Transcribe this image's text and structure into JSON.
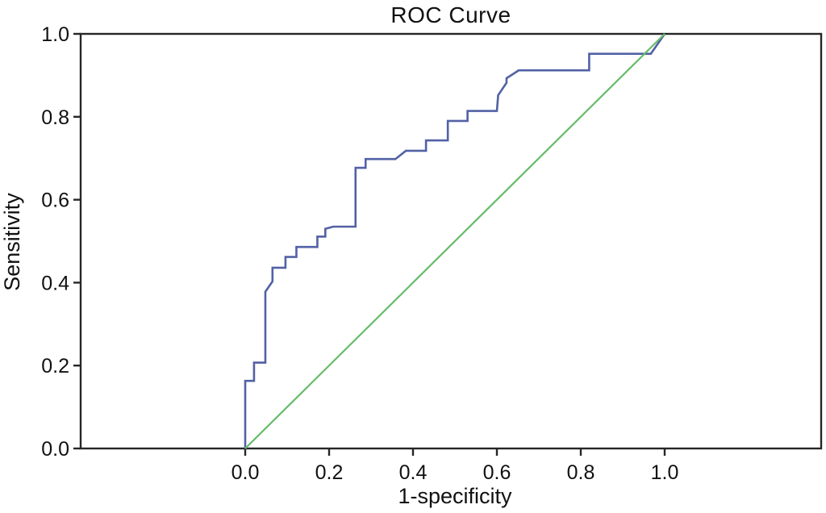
{
  "chart_data": {
    "type": "line",
    "title": "ROC Curve",
    "xlabel": "1-specificity",
    "ylabel": "Sensitivity",
    "xlim": [
      0,
      1
    ],
    "ylim": [
      0,
      1
    ],
    "grid": false,
    "legend": "none",
    "x_tick_values": [
      0.0,
      0.2,
      0.4,
      0.6,
      0.8,
      1.0
    ],
    "x_tick_labels": [
      "0.0",
      "0.2",
      "0.4",
      "0.6",
      "0.8",
      "1.0"
    ],
    "y_tick_values": [
      0.0,
      0.2,
      0.4,
      0.6,
      0.8,
      1.0
    ],
    "y_tick_labels": [
      "0.0",
      "0.2",
      "0.4",
      "0.6",
      "0.8",
      "1.0"
    ],
    "series": [
      {
        "name": "roc_curve",
        "color": "#5261a5",
        "stroke_width": 2.6,
        "points": [
          [
            0,
            0
          ],
          [
            0,
            0.163
          ],
          [
            0.021,
            0.163
          ],
          [
            0.021,
            0.207
          ],
          [
            0.048,
            0.207
          ],
          [
            0.048,
            0.378
          ],
          [
            0.065,
            0.403
          ],
          [
            0.065,
            0.436
          ],
          [
            0.096,
            0.436
          ],
          [
            0.096,
            0.462
          ],
          [
            0.122,
            0.462
          ],
          [
            0.122,
            0.486
          ],
          [
            0.172,
            0.486
          ],
          [
            0.172,
            0.511
          ],
          [
            0.191,
            0.511
          ],
          [
            0.191,
            0.53
          ],
          [
            0.21,
            0.535
          ],
          [
            0.263,
            0.535
          ],
          [
            0.263,
            0.677
          ],
          [
            0.287,
            0.677
          ],
          [
            0.287,
            0.698
          ],
          [
            0.358,
            0.698
          ],
          [
            0.383,
            0.718
          ],
          [
            0.431,
            0.718
          ],
          [
            0.431,
            0.743
          ],
          [
            0.483,
            0.743
          ],
          [
            0.483,
            0.79
          ],
          [
            0.53,
            0.79
          ],
          [
            0.53,
            0.814
          ],
          [
            0.6,
            0.814
          ],
          [
            0.603,
            0.852
          ],
          [
            0.623,
            0.882
          ],
          [
            0.623,
            0.893
          ],
          [
            0.652,
            0.912
          ],
          [
            0.82,
            0.912
          ],
          [
            0.82,
            0.952
          ],
          [
            0.967,
            0.952
          ],
          [
            1,
            1
          ]
        ]
      },
      {
        "name": "reference_line",
        "color": "#66bb6a",
        "stroke_width": 2.2,
        "points": [
          [
            0,
            0
          ],
          [
            1,
            1
          ]
        ]
      }
    ],
    "axis_color": "#262626",
    "background_color": "#ffffff"
  }
}
